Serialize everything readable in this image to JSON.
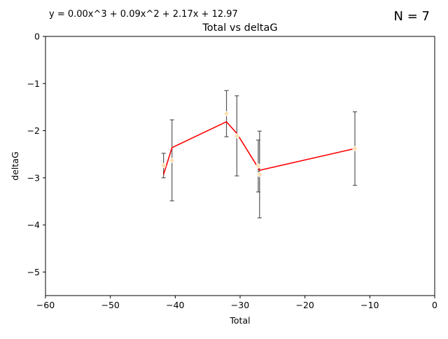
{
  "figure": {
    "equation": "y = 0.00x^3 + 0.09x^2 + 2.17x + 12.97",
    "n_label": "N = 7"
  },
  "chart_data": {
    "type": "scatter",
    "title": "Total vs deltaG",
    "xlabel": "Total",
    "ylabel": "deltaG",
    "xlim": [
      -60,
      0
    ],
    "ylim": [
      -5.5,
      0
    ],
    "xticks": [
      -60,
      -50,
      -40,
      -30,
      -20,
      -10,
      0
    ],
    "yticks": [
      0,
      -1,
      -2,
      -3,
      -4,
      -5
    ],
    "xtick_labels": [
      "−60",
      "−50",
      "−40",
      "−30",
      "−20",
      "−10",
      "0"
    ],
    "ytick_labels": [
      "0",
      "−1",
      "−2",
      "−3",
      "−4",
      "−5"
    ],
    "grid": false,
    "points": {
      "x": [
        -41.8,
        -40.5,
        -32.1,
        -30.5,
        -27.2,
        -27.0,
        -12.3
      ],
      "y": [
        -2.74,
        -2.63,
        -1.64,
        -2.11,
        -2.75,
        -2.93,
        -2.38
      ],
      "yerr": [
        0.26,
        0.86,
        0.49,
        0.85,
        0.55,
        0.92,
        0.78
      ],
      "color": "#ffe0b2"
    },
    "errorbar_color": "#555555",
    "fit_line": {
      "x": [
        -41.8,
        -40.5,
        -32.1,
        -30.5,
        -27.2,
        -27.0,
        -12.3
      ],
      "y": [
        -2.93,
        -2.36,
        -1.81,
        -2.06,
        -2.79,
        -2.84,
        -2.38
      ],
      "color": "#ff0000"
    }
  }
}
